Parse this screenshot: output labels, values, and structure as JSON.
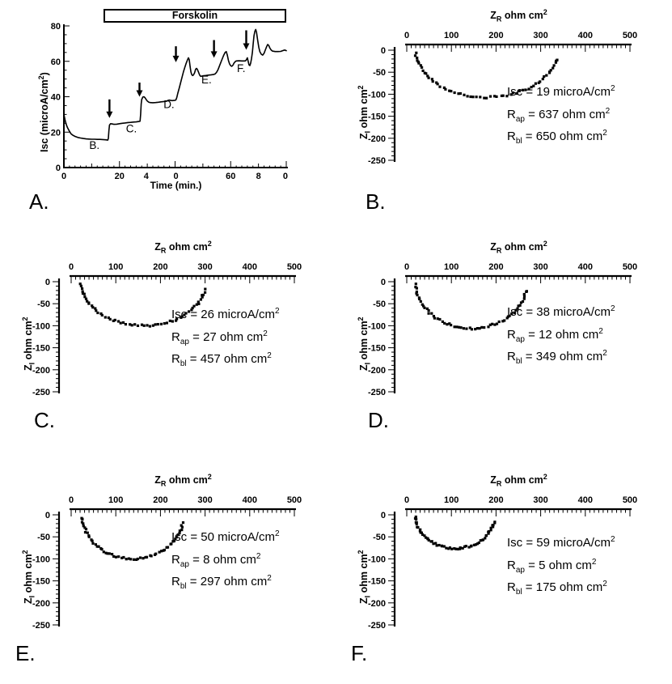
{
  "meta": {
    "colors": {
      "ink": "#000000",
      "background": "#ffffff"
    }
  },
  "chart_data": [
    {
      "id": "A",
      "type": "line",
      "panel_label": "A.",
      "xlabel": "Time (min.)",
      "ylabel_pre": "Isc (microA/cm",
      "ylabel_sup": "2",
      "ylabel_post": ")",
      "xlim": [
        0,
        80
      ],
      "ylim": [
        0,
        80
      ],
      "x_ticks": [
        {
          "pos": 0,
          "label": "0"
        },
        {
          "pos": 20,
          "label": "20"
        },
        {
          "pos": 29.6,
          "label": "4"
        },
        {
          "pos": 40.3,
          "label": "0"
        },
        {
          "pos": 60,
          "label": "60"
        },
        {
          "pos": 70,
          "label": "8"
        },
        {
          "pos": 79.7,
          "label": "0"
        }
      ],
      "y_ticks": [
        {
          "pos": 0,
          "label": "0"
        },
        {
          "pos": 20,
          "label": "20"
        },
        {
          "pos": 40,
          "label": "40"
        },
        {
          "pos": 60,
          "label": "60"
        },
        {
          "pos": 80,
          "label": "80"
        }
      ],
      "treatment_bar": {
        "label": "Forskolin",
        "t_start": 14.3,
        "t_end": 80
      },
      "arrows": [
        {
          "t": 16.4,
          "y_tip": 28,
          "y_tail": 38.5
        },
        {
          "t": 27.2,
          "y_tip": 40,
          "y_tail": 48
        },
        {
          "t": 40.3,
          "y_tip": 59.5,
          "y_tail": 68.5
        },
        {
          "t": 54.0,
          "y_tip": 62,
          "y_tail": 72
        },
        {
          "t": 65.6,
          "y_tip": 66.5,
          "y_tail": 77.5
        }
      ],
      "curve_labels": [
        {
          "text": "B.",
          "t": 11,
          "y": 10.5
        },
        {
          "text": "C.",
          "t": 24.3,
          "y": 20
        },
        {
          "text": "D.",
          "t": 37.8,
          "y": 33.5
        },
        {
          "text": "E.",
          "t": 51.3,
          "y": 47.5
        },
        {
          "text": "F.",
          "t": 63.8,
          "y": 54
        }
      ],
      "series": [
        {
          "name": "Isc",
          "points": [
            [
              0,
              30
            ],
            [
              0.4,
              27
            ],
            [
              0.8,
              24.5
            ],
            [
              1.3,
              22.5
            ],
            [
              2,
              20.5
            ],
            [
              2.6,
              19
            ],
            [
              3.3,
              18.2
            ],
            [
              4,
              17.6
            ],
            [
              5,
              17
            ],
            [
              6,
              16.7
            ],
            [
              7,
              16.4
            ],
            [
              8,
              16.2
            ],
            [
              9,
              16.1
            ],
            [
              10,
              16
            ],
            [
              11,
              16
            ],
            [
              12,
              15.9
            ],
            [
              13,
              15.9
            ],
            [
              14,
              15.8
            ],
            [
              15,
              15.7
            ],
            [
              15.8,
              15.5
            ],
            [
              16,
              16.5
            ],
            [
              16.2,
              21
            ],
            [
              16.4,
              24
            ],
            [
              16.8,
              24.8
            ],
            [
              17.5,
              24.6
            ],
            [
              18,
              24.4
            ],
            [
              19,
              24.5
            ],
            [
              20,
              24.8
            ],
            [
              21,
              25
            ],
            [
              22,
              25.2
            ],
            [
              23,
              25.4
            ],
            [
              24,
              25.5
            ],
            [
              25,
              25.7
            ],
            [
              26,
              25.8
            ],
            [
              27,
              26
            ],
            [
              27.4,
              26.2
            ],
            [
              27.6,
              30
            ],
            [
              27.8,
              36
            ],
            [
              28,
              38.5
            ],
            [
              28.4,
              39.8
            ],
            [
              28.8,
              40
            ],
            [
              29.2,
              39.4
            ],
            [
              29.6,
              38.4
            ],
            [
              30,
              37.6
            ],
            [
              30.5,
              37
            ],
            [
              31,
              36.7
            ],
            [
              32,
              36.6
            ],
            [
              33,
              36.7
            ],
            [
              34,
              36.9
            ],
            [
              35,
              37.1
            ],
            [
              36,
              37.3
            ],
            [
              37,
              37.5
            ],
            [
              37.5,
              38
            ],
            [
              38,
              38.1
            ],
            [
              38.5,
              37.9
            ],
            [
              39,
              37.8
            ],
            [
              39.5,
              37.9
            ],
            [
              40,
              38
            ],
            [
              40.3,
              38.2
            ],
            [
              40.6,
              39.5
            ],
            [
              41,
              42
            ],
            [
              41.5,
              45
            ],
            [
              42,
              48
            ],
            [
              42.5,
              51
            ],
            [
              43,
              54
            ],
            [
              43.5,
              56.5
            ],
            [
              44,
              59
            ],
            [
              44.5,
              61
            ],
            [
              44.8,
              62
            ],
            [
              45.1,
              61
            ],
            [
              45.4,
              57
            ],
            [
              45.7,
              54
            ],
            [
              46,
              52.5
            ],
            [
              46.3,
              52
            ],
            [
              46.6,
              52.3
            ],
            [
              47,
              53.5
            ],
            [
              47.4,
              55.5
            ],
            [
              47.7,
              56
            ],
            [
              48,
              55.5
            ],
            [
              48.4,
              54
            ],
            [
              48.8,
              52.3
            ],
            [
              49.2,
              51.5
            ],
            [
              49.6,
              51.6
            ],
            [
              50,
              51.8
            ],
            [
              51,
              52
            ],
            [
              52,
              52.2
            ],
            [
              53,
              52.4
            ],
            [
              54,
              52.6
            ],
            [
              54.5,
              53
            ],
            [
              55,
              54
            ],
            [
              55.5,
              55.5
            ],
            [
              56,
              57.5
            ],
            [
              56.5,
              59.5
            ],
            [
              57,
              61.5
            ],
            [
              57.5,
              63.5
            ],
            [
              58,
              65
            ],
            [
              58.4,
              65.5
            ],
            [
              58.8,
              63.5
            ],
            [
              59.2,
              60.5
            ],
            [
              59.6,
              58.5
            ],
            [
              60,
              57.5
            ],
            [
              60.4,
              57.2
            ],
            [
              60.8,
              57.8
            ],
            [
              61.2,
              59
            ],
            [
              61.6,
              59.8
            ],
            [
              62,
              60.2
            ],
            [
              63,
              60.3
            ],
            [
              64,
              60.2
            ],
            [
              65,
              60.2
            ],
            [
              65.4,
              60.3
            ],
            [
              65.7,
              61
            ],
            [
              66,
              62
            ],
            [
              66.3,
              60
            ],
            [
              66.6,
              58
            ],
            [
              66.9,
              57.6
            ],
            [
              67.2,
              59
            ],
            [
              67.5,
              61.5
            ],
            [
              67.8,
              65
            ],
            [
              68.1,
              70
            ],
            [
              68.4,
              74.5
            ],
            [
              68.7,
              77
            ],
            [
              69,
              78
            ],
            [
              69.3,
              76.5
            ],
            [
              69.7,
              72
            ],
            [
              70.1,
              68
            ],
            [
              70.5,
              65.5
            ],
            [
              71,
              64
            ],
            [
              71.5,
              63.5
            ],
            [
              72,
              64.5
            ],
            [
              72.5,
              66.5
            ],
            [
              73,
              68.5
            ],
            [
              73.3,
              69.5
            ],
            [
              73.7,
              69
            ],
            [
              74.1,
              67.5
            ],
            [
              74.5,
              66.5
            ],
            [
              75,
              65.8
            ],
            [
              76,
              65.5
            ],
            [
              77,
              65.5
            ],
            [
              78,
              65.6
            ],
            [
              79,
              66.2
            ],
            [
              79.5,
              66.4
            ],
            [
              80,
              66
            ]
          ]
        }
      ]
    },
    {
      "id": "B",
      "type": "scatter",
      "panel_label": "B.",
      "title_base": "Z",
      "title_sub": "R",
      "title_rest": " ohm cm",
      "title_sup": "2",
      "ylabel_base": "Z",
      "ylabel_sub": "I",
      "ylabel_rest": " ohm cm",
      "ylabel_sup": "2",
      "xlim": [
        0,
        500
      ],
      "ylim": [
        -250,
        0
      ],
      "x_ticks": [
        "0",
        "100",
        "200",
        "300",
        "400",
        "500"
      ],
      "y_ticks": [
        "0",
        "-50",
        "-100",
        "-150",
        "-200",
        "-250"
      ],
      "arc": {
        "x_start": 20,
        "x_end": 336,
        "depth": 107
      },
      "isc_microA_cm2": 19,
      "r_ap_ohm_cm2": 637,
      "r_bl_ohm_cm2": 650,
      "readouts": [
        {
          "base": "Isc",
          "sub": "",
          "rest": " = 19 microA/cm",
          "sup": "2"
        },
        {
          "base": "R",
          "sub": "ap",
          "rest": " = 637 ohm cm",
          "sup": "2"
        },
        {
          "base": "R",
          "sub": "bl",
          "rest": " = 650 ohm cm",
          "sup": "2"
        }
      ]
    },
    {
      "id": "C",
      "type": "scatter",
      "panel_label": "C.",
      "title_base": "Z",
      "title_sub": "R",
      "title_rest": " ohm cm",
      "title_sup": "2",
      "ylabel_base": "Z",
      "ylabel_sub": "I",
      "ylabel_rest": " ohm cm",
      "ylabel_sup": "2",
      "xlim": [
        0,
        500
      ],
      "ylim": [
        -250,
        0
      ],
      "x_ticks": [
        "0",
        "100",
        "200",
        "300",
        "400",
        "500"
      ],
      "y_ticks": [
        "0",
        "-50",
        "-100",
        "-150",
        "-200",
        "-250"
      ],
      "arc": {
        "x_start": 22,
        "x_end": 300,
        "depth": 100
      },
      "isc_microA_cm2": 26,
      "r_ap_ohm_cm2": 27,
      "r_bl_ohm_cm2": 457,
      "readouts": [
        {
          "base": "Isc",
          "sub": "",
          "rest": " = 26 microA/cm",
          "sup": "2"
        },
        {
          "base": "R",
          "sub": "ap",
          "rest": " = 27 ohm cm",
          "sup": "2"
        },
        {
          "base": "R",
          "sub": "bl",
          "rest": " = 457 ohm cm",
          "sup": "2"
        }
      ]
    },
    {
      "id": "D",
      "type": "scatter",
      "panel_label": "D.",
      "title_base": "Z",
      "title_sub": "R",
      "title_rest": " ohm cm",
      "title_sup": "2",
      "ylabel_base": "Z",
      "ylabel_sub": "I",
      "ylabel_rest": " ohm cm",
      "ylabel_sup": "2",
      "xlim": [
        0,
        500
      ],
      "ylim": [
        -250,
        0
      ],
      "x_ticks": [
        "0",
        "100",
        "200",
        "300",
        "400",
        "500"
      ],
      "y_ticks": [
        "0",
        "-50",
        "-100",
        "-150",
        "-200",
        "-250"
      ],
      "arc": {
        "x_start": 20,
        "x_end": 268,
        "depth": 106
      },
      "isc_microA_cm2": 38,
      "r_ap_ohm_cm2": 12,
      "r_bl_ohm_cm2": 349,
      "readouts": [
        {
          "base": "Isc",
          "sub": "",
          "rest": " = 38 microA/cm",
          "sup": "2"
        },
        {
          "base": "R",
          "sub": "ap",
          "rest": " = 12 ohm cm",
          "sup": "2"
        },
        {
          "base": "R",
          "sub": "bl",
          "rest": " = 349 ohm cm",
          "sup": "2"
        }
      ]
    },
    {
      "id": "E",
      "type": "scatter",
      "panel_label": "E.",
      "title_base": "Z",
      "title_sub": "R",
      "title_rest": " ohm cm",
      "title_sup": "2",
      "ylabel_base": "Z",
      "ylabel_sub": "I",
      "ylabel_rest": " ohm cm",
      "ylabel_sup": "2",
      "xlim": [
        0,
        500
      ],
      "ylim": [
        -250,
        0
      ],
      "x_ticks": [
        "0",
        "100",
        "200",
        "300",
        "400",
        "500"
      ],
      "y_ticks": [
        "0",
        "-50",
        "-100",
        "-150",
        "-200",
        "-250"
      ],
      "arc": {
        "x_start": 25,
        "x_end": 250,
        "depth": 100
      },
      "isc_microA_cm2": 50,
      "r_ap_ohm_cm2": 8,
      "r_bl_ohm_cm2": 297,
      "readouts": [
        {
          "base": "Isc",
          "sub": "",
          "rest": " = 50 microA/cm",
          "sup": "2"
        },
        {
          "base": "R",
          "sub": "ap",
          "rest": " = 8 ohm cm",
          "sup": "2"
        },
        {
          "base": "R",
          "sub": "bl",
          "rest": " = 297 ohm cm",
          "sup": "2"
        }
      ]
    },
    {
      "id": "F",
      "type": "scatter",
      "panel_label": "F.",
      "title_base": "Z",
      "title_sub": "R",
      "title_rest": " ohm cm",
      "title_sup": "2",
      "ylabel_base": "Z",
      "ylabel_sub": "I",
      "ylabel_rest": " ohm cm",
      "ylabel_sup": "2",
      "xlim": [
        0,
        500
      ],
      "ylim": [
        -250,
        0
      ],
      "x_ticks": [
        "0",
        "100",
        "200",
        "300",
        "400",
        "500"
      ],
      "y_ticks": [
        "0",
        "-50",
        "-100",
        "-150",
        "-200",
        "-250"
      ],
      "arc": {
        "x_start": 20,
        "x_end": 196,
        "depth": 76
      },
      "isc_microA_cm2": 59,
      "r_ap_ohm_cm2": 5,
      "r_bl_ohm_cm2": 175,
      "readouts": [
        {
          "base": "Isc",
          "sub": "",
          "rest": " = 59 microA/cm",
          "sup": "2"
        },
        {
          "base": "R",
          "sub": "ap",
          "rest": " = 5 ohm cm",
          "sup": "2"
        },
        {
          "base": "R",
          "sub": "bl",
          "rest": " = 175 ohm cm",
          "sup": "2"
        }
      ]
    }
  ]
}
